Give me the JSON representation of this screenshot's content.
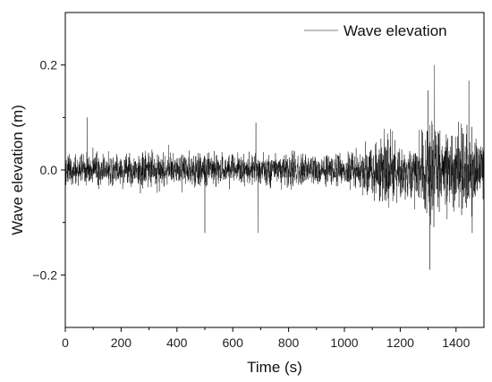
{
  "chart_data": {
    "type": "line",
    "title": "",
    "xlabel": "Time (s)",
    "ylabel": "Wave elevation (m)",
    "xlim": [
      0,
      1500
    ],
    "ylim": [
      -0.3,
      0.3
    ],
    "x_ticks": [
      0,
      200,
      400,
      600,
      800,
      1000,
      1200,
      1400
    ],
    "x_tick_labels": [
      "0",
      "200",
      "400",
      "600",
      "800",
      "1000",
      "1200",
      "1400"
    ],
    "y_ticks": [
      -0.2,
      0.0,
      0.2
    ],
    "y_tick_labels": [
      "−0.2",
      "0.0",
      "0.2"
    ],
    "grid": false,
    "legend_position": "top-right",
    "series": [
      {
        "name": "Wave elevation",
        "color": "#000000",
        "legend_color": "#999999",
        "sample_interval_s": 0.5,
        "envelope": [
          {
            "t": 0,
            "amp": 0.055
          },
          {
            "t": 200,
            "amp": 0.055
          },
          {
            "t": 400,
            "amp": 0.055
          },
          {
            "t": 600,
            "amp": 0.055
          },
          {
            "t": 800,
            "amp": 0.055
          },
          {
            "t": 1000,
            "amp": 0.055
          },
          {
            "t": 1080,
            "amp": 0.07
          },
          {
            "t": 1150,
            "amp": 0.13
          },
          {
            "t": 1200,
            "amp": 0.09
          },
          {
            "t": 1260,
            "amp": 0.1
          },
          {
            "t": 1310,
            "amp": 0.19
          },
          {
            "t": 1360,
            "amp": 0.12
          },
          {
            "t": 1420,
            "amp": 0.15
          },
          {
            "t": 1500,
            "amp": 0.11
          }
        ],
        "spikes": [
          {
            "t": 78,
            "y": 0.1
          },
          {
            "t": 500,
            "y": -0.12
          },
          {
            "t": 683,
            "y": 0.09
          },
          {
            "t": 690,
            "y": -0.12
          },
          {
            "t": 1306,
            "y": -0.19
          },
          {
            "t": 1323,
            "y": 0.2
          },
          {
            "t": 1446,
            "y": 0.17
          },
          {
            "t": 1458,
            "y": -0.12
          }
        ]
      }
    ]
  }
}
